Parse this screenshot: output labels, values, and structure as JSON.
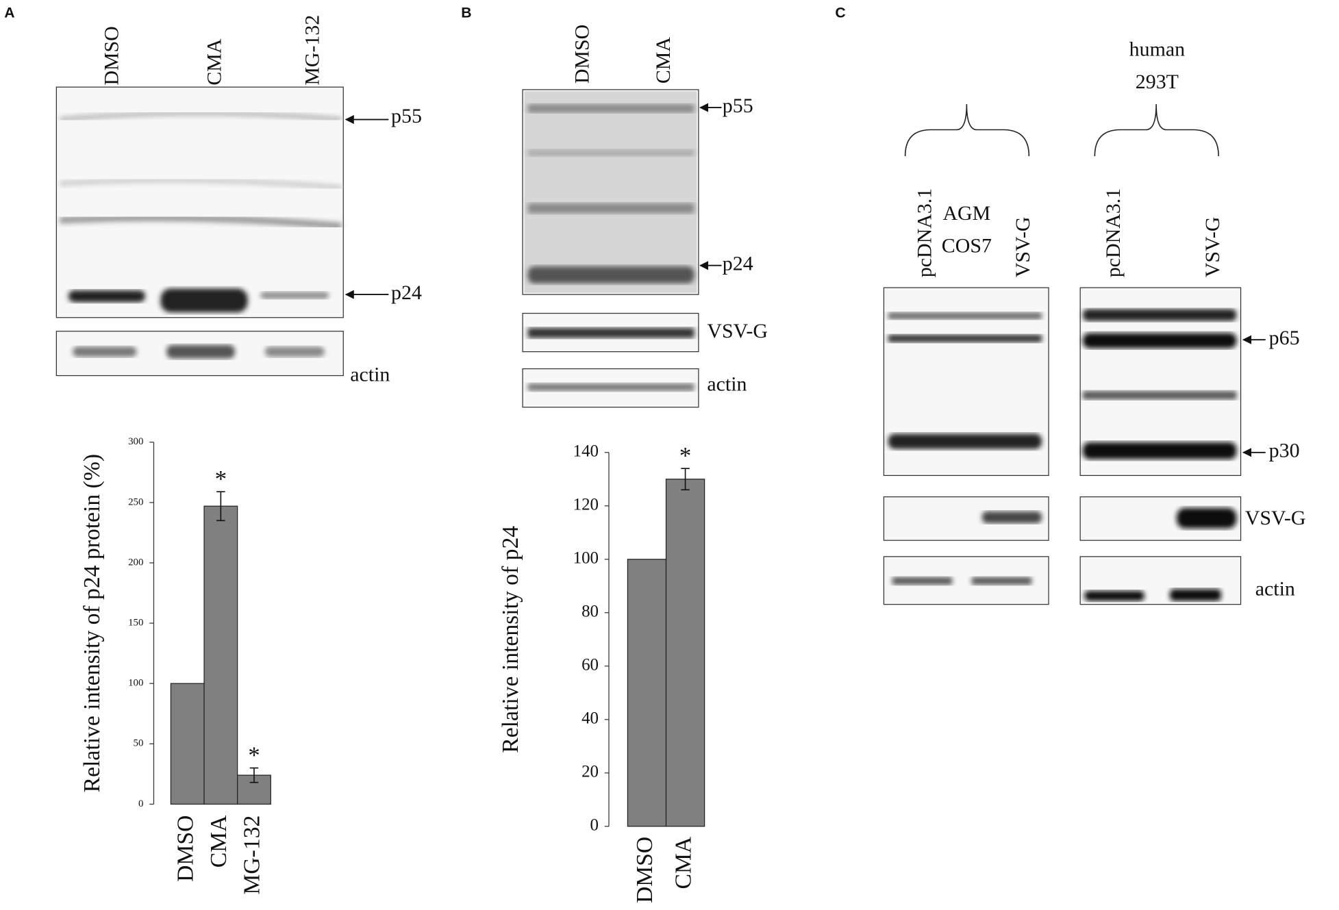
{
  "chart_data": [
    {
      "type": "bar",
      "y_label": "Relative intensity of p24 protein (%)",
      "categories": [
        "DMSO",
        "CMA",
        "MG-132"
      ],
      "values": [
        100,
        247,
        24
      ],
      "errors": [
        null,
        12,
        6
      ],
      "markers": [
        null,
        "*",
        "*"
      ],
      "color": "#808080",
      "ylim": [
        0,
        300
      ],
      "yticks": [
        0,
        50,
        100,
        150,
        200,
        250,
        300
      ]
    },
    {
      "type": "bar",
      "y_label": "Relative intensity of p24",
      "categories": [
        "DMSO",
        "CMA"
      ],
      "values": [
        100,
        130
      ],
      "errors": [
        null,
        4
      ],
      "markers": [
        null,
        "*"
      ],
      "color": "#808080",
      "ylim": [
        0,
        140
      ],
      "yticks": [
        0,
        20,
        40,
        60,
        80,
        100,
        120,
        140
      ]
    }
  ],
  "blots": {
    "A": {
      "label": "A",
      "lanes": [
        "DMSO",
        "CMA",
        "MG-132"
      ],
      "bands": [
        "p55",
        "p24"
      ],
      "rows": [
        "actin"
      ]
    },
    "B": {
      "label": "B",
      "lanes": [
        "DMSO",
        "CMA"
      ],
      "bands": [
        "p55",
        "p24"
      ],
      "rows": [
        "VSV-G",
        "actin"
      ]
    },
    "C": {
      "label": "C",
      "groups": [
        {
          "name": [
            "AGM",
            "COS7"
          ],
          "lanes": [
            "pcDNA3.1",
            "VSV-G"
          ]
        },
        {
          "name": [
            "human",
            "293T"
          ],
          "lanes": [
            "pcDNA3.1",
            "VSV-G"
          ]
        }
      ],
      "bands": [
        "p65",
        "p30"
      ],
      "rows": [
        "VSV-G",
        "actin"
      ]
    }
  }
}
